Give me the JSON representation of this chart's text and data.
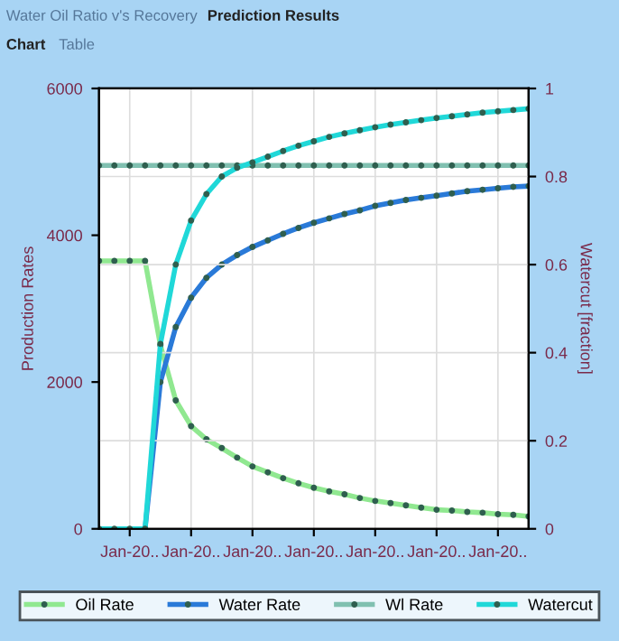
{
  "chart_data": {
    "type": "line",
    "ylabel": "Production Rates",
    "y2label": "Watercut [fraction]",
    "annotations": [
      "Water Oil Ratio v's Recovery",
      "Prediction Results",
      "Chart",
      "Table"
    ],
    "categories": [
      null,
      null,
      "Jan-20..",
      null,
      null,
      null,
      "Jan-20..",
      null,
      null,
      null,
      "Jan-20..",
      null,
      null,
      null,
      "Jan-20..",
      null,
      null,
      null,
      "Jan-20..",
      null,
      null,
      null,
      "Jan-20..",
      null,
      null,
      null,
      "Jan-20..",
      null,
      null
    ],
    "ylim": [
      0,
      6000
    ],
    "yticks": [
      0,
      2000,
      4000,
      6000
    ],
    "y2lim": [
      0,
      1
    ],
    "y2ticks": [
      0,
      0.2,
      0.4,
      0.6,
      0.8,
      1
    ],
    "grid": true,
    "legend": "bottom",
    "marker": "circle",
    "line_style": "solid",
    "series": [
      {
        "name": "Oil Rate",
        "color": "#90e890",
        "values": [
          3650,
          3650,
          3650,
          3650,
          2500,
          1750,
          1400,
          1220,
          1100,
          970,
          850,
          770,
          690,
          620,
          560,
          510,
          470,
          420,
          380,
          350,
          320,
          290,
          260,
          250,
          230,
          220,
          200,
          190,
          170
        ]
      },
      {
        "name": "Water Rate",
        "color": "#2a7ad8",
        "values": [
          null,
          null,
          null,
          0,
          2000,
          2750,
          3150,
          3420,
          3600,
          3730,
          3840,
          3930,
          4020,
          4100,
          4170,
          4230,
          4290,
          4340,
          4400,
          4440,
          4480,
          4510,
          4540,
          4570,
          4600,
          4620,
          4640,
          4660,
          4670
        ]
      },
      {
        "name": "Wl Rate",
        "color": "#80c0b0",
        "values": [
          4950,
          4950,
          4950,
          4950,
          4950,
          4950,
          4950,
          4950,
          4950,
          4950,
          4950,
          4950,
          4950,
          4950,
          4950,
          4950,
          4950,
          4950,
          4950,
          4950,
          4950,
          4950,
          4950,
          4950,
          4950,
          4950,
          4950,
          4950,
          4950
        ]
      },
      {
        "name": "Watercut",
        "color": "#20d8d8",
        "axis": "y2",
        "values": [
          0,
          0,
          0,
          0,
          0.42,
          0.6,
          0.7,
          0.76,
          0.8,
          0.82,
          0.832,
          0.845,
          0.858,
          0.87,
          0.88,
          0.89,
          0.898,
          0.905,
          0.912,
          0.918,
          0.923,
          0.928,
          0.933,
          0.937,
          0.941,
          0.945,
          0.948,
          0.951,
          0.954
        ]
      }
    ]
  }
}
